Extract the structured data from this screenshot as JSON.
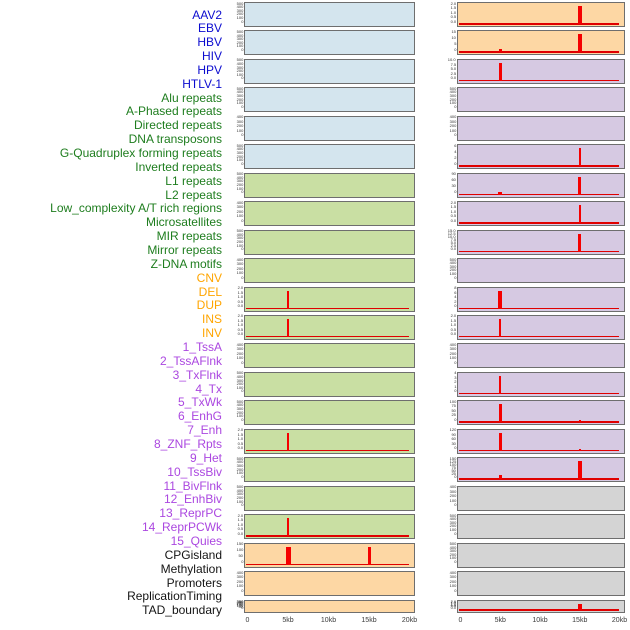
{
  "figure": {
    "description": "Multi-track genomic signal figure: 44 annotation rows, two loci columns, red signal spikes on colored panel backgrounds"
  },
  "colors": {
    "panel_blue": "#d4e5ee",
    "panel_green": "#c9dfa3",
    "panel_orange": "#fdd7a4",
    "panel_purple": "#d6c9e2",
    "panel_gray": "#d4d4d4",
    "spike_red": "#f50000",
    "baseline_red": "#e00000",
    "panel_border": "#6e6e6e",
    "label_blue": "#0b0bcf",
    "label_green": "#1e7d1e",
    "label_orange": "#ffa500",
    "label_purple": "#ab47e0",
    "label_black": "#141414",
    "tick_text": "#2f2f2f",
    "axis_text": "#3a3a3a"
  },
  "chart_data": {
    "type": "bar",
    "title": "",
    "x_axis": {
      "ticks": [
        "0",
        "5kb",
        "10kb",
        "15kb",
        "20kb"
      ],
      "range_kb": [
        0,
        20
      ]
    },
    "legend": "none",
    "grid": false,
    "row_labels": [
      {
        "text": "AAV2",
        "group": "virus"
      },
      {
        "text": "EBV",
        "group": "virus"
      },
      {
        "text": "HBV",
        "group": "virus"
      },
      {
        "text": "HIV",
        "group": "virus"
      },
      {
        "text": "HPV",
        "group": "virus"
      },
      {
        "text": "HTLV-1",
        "group": "virus"
      },
      {
        "text": "Alu repeats",
        "group": "repeat"
      },
      {
        "text": "A-Phased repeats",
        "group": "repeat"
      },
      {
        "text": "Directed repeats",
        "group": "repeat"
      },
      {
        "text": "DNA transposons",
        "group": "repeat"
      },
      {
        "text": "G-Quadruplex forming repeats",
        "group": "repeat"
      },
      {
        "text": "Inverted repeats",
        "group": "repeat"
      },
      {
        "text": "L1 repeats",
        "group": "repeat"
      },
      {
        "text": "L2 repeats",
        "group": "repeat"
      },
      {
        "text": "Low_complexity A/T rich regions",
        "group": "repeat"
      },
      {
        "text": "Microsatellites",
        "group": "repeat"
      },
      {
        "text": "MIR repeats",
        "group": "repeat"
      },
      {
        "text": "Mirror repeats",
        "group": "repeat"
      },
      {
        "text": "Z-DNA motifs",
        "group": "repeat"
      },
      {
        "text": "CNV",
        "group": "sv"
      },
      {
        "text": "DEL",
        "group": "sv"
      },
      {
        "text": "DUP",
        "group": "sv"
      },
      {
        "text": "INS",
        "group": "sv"
      },
      {
        "text": "INV",
        "group": "sv"
      },
      {
        "text": "1_TssA",
        "group": "chromstate"
      },
      {
        "text": "2_TssAFlnk",
        "group": "chromstate"
      },
      {
        "text": "3_TxFlnk",
        "group": "chromstate"
      },
      {
        "text": "4_Tx",
        "group": "chromstate"
      },
      {
        "text": "5_TxWk",
        "group": "chromstate"
      },
      {
        "text": "6_EnhG",
        "group": "chromstate"
      },
      {
        "text": "7_Enh",
        "group": "chromstate"
      },
      {
        "text": "8_ZNF_Rpts",
        "group": "chromstate"
      },
      {
        "text": "9_Het",
        "group": "chromstate"
      },
      {
        "text": "10_TssBiv",
        "group": "chromstate"
      },
      {
        "text": "11_BivFlnk",
        "group": "chromstate"
      },
      {
        "text": "12_EnhBiv",
        "group": "chromstate"
      },
      {
        "text": "13_ReprPC",
        "group": "chromstate"
      },
      {
        "text": "14_ReprPCWk",
        "group": "chromstate"
      },
      {
        "text": "15_Quies",
        "group": "chromstate"
      },
      {
        "text": "CPGisland",
        "group": "other"
      },
      {
        "text": "Methylation",
        "group": "other"
      },
      {
        "text": "Promoters",
        "group": "other"
      },
      {
        "text": "ReplicationTiming",
        "group": "other"
      },
      {
        "text": "TAD_boundary",
        "group": "other"
      }
    ],
    "left_panels": [
      {
        "bg": "panel_blue",
        "yticks": [
          "500",
          "400",
          "300",
          "200",
          "100",
          "0"
        ],
        "baseline": false,
        "spikes": []
      },
      {
        "bg": "panel_blue",
        "yticks": [
          "500",
          "400",
          "300",
          "200",
          "100",
          "0"
        ],
        "baseline": false,
        "spikes": []
      },
      {
        "bg": "panel_blue",
        "yticks": [
          "500",
          "400",
          "300",
          "200",
          "100",
          "0"
        ],
        "baseline": false,
        "spikes": []
      },
      {
        "bg": "panel_blue",
        "yticks": [
          "500",
          "400",
          "300",
          "200",
          "100",
          "0"
        ],
        "baseline": false,
        "spikes": []
      },
      {
        "bg": "panel_blue",
        "yticks": [
          "400",
          "300",
          "200",
          "100",
          "0"
        ],
        "baseline": false,
        "spikes": []
      },
      {
        "bg": "panel_blue",
        "yticks": [
          "500",
          "400",
          "300",
          "200",
          "100",
          "0"
        ],
        "baseline": false,
        "spikes": []
      },
      {
        "bg": "panel_green",
        "yticks": [
          "500",
          "400",
          "300",
          "200",
          "100",
          "0"
        ],
        "baseline": false,
        "spikes": []
      },
      {
        "bg": "panel_green",
        "yticks": [
          "400",
          "300",
          "200",
          "100",
          "0"
        ],
        "baseline": false,
        "spikes": []
      },
      {
        "bg": "panel_green",
        "yticks": [
          "500",
          "400",
          "300",
          "200",
          "100",
          "0"
        ],
        "baseline": false,
        "spikes": []
      },
      {
        "bg": "panel_green",
        "yticks": [
          "400",
          "300",
          "200",
          "100",
          "0"
        ],
        "baseline": false,
        "spikes": []
      },
      {
        "bg": "panel_green",
        "yticks": [
          "2.0",
          "1.5",
          "1.0",
          "0.5",
          "0.0"
        ],
        "baseline": true,
        "spikes": [
          {
            "x_kb": 5,
            "h": 1.0,
            "w": 2
          }
        ]
      },
      {
        "bg": "panel_green",
        "yticks": [
          "2.0",
          "1.5",
          "1.0",
          "0.5",
          "0.0"
        ],
        "baseline": true,
        "spikes": [
          {
            "x_kb": 5,
            "h": 1.0,
            "w": 2
          }
        ]
      },
      {
        "bg": "panel_green",
        "yticks": [
          "400",
          "300",
          "200",
          "100",
          "0"
        ],
        "baseline": false,
        "spikes": []
      },
      {
        "bg": "panel_green",
        "yticks": [
          "500",
          "400",
          "300",
          "200",
          "100",
          "0"
        ],
        "baseline": false,
        "spikes": []
      },
      {
        "bg": "panel_green",
        "yticks": [
          "500",
          "400",
          "300",
          "200",
          "100",
          "0"
        ],
        "baseline": false,
        "spikes": []
      },
      {
        "bg": "panel_green",
        "yticks": [
          "2.0",
          "1.5",
          "1.0",
          "0.5",
          "0.0"
        ],
        "baseline": true,
        "spikes": [
          {
            "x_kb": 5,
            "h": 1.0,
            "w": 2
          }
        ]
      },
      {
        "bg": "panel_green",
        "yticks": [
          "500",
          "400",
          "300",
          "200",
          "100",
          "0"
        ],
        "baseline": false,
        "spikes": []
      },
      {
        "bg": "panel_green",
        "yticks": [
          "500",
          "400",
          "300",
          "200",
          "100",
          "0"
        ],
        "baseline": false,
        "spikes": []
      },
      {
        "bg": "panel_green",
        "yticks": [
          "2.0",
          "1.5",
          "1.0",
          "0.5",
          "0.0"
        ],
        "baseline": true,
        "spikes": [
          {
            "x_kb": 5,
            "h": 1.0,
            "w": 2
          }
        ]
      },
      {
        "bg": "panel_orange",
        "yticks": [
          "150",
          "100",
          "50",
          "0"
        ],
        "baseline": true,
        "spikes": [
          {
            "x_kb": 5,
            "h": 1.0,
            "w": 5
          },
          {
            "x_kb": 15,
            "h": 0.97,
            "w": 3
          }
        ]
      },
      {
        "bg": "panel_orange",
        "yticks": [
          "400",
          "300",
          "200",
          "100",
          "0"
        ],
        "baseline": false,
        "spikes": []
      },
      {
        "bg": "panel_orange",
        "yticks": [
          "350",
          "300",
          "250",
          "200",
          "150",
          "100",
          "50",
          "0"
        ],
        "baseline": false,
        "spikes": []
      }
    ],
    "right_panels": [
      {
        "bg": "panel_orange",
        "yticks": [
          "2.0",
          "1.5",
          "1.0",
          "0.5",
          "0.0"
        ],
        "baseline": true,
        "spikes": [
          {
            "x_kb": 15,
            "h": 1.0,
            "w": 4
          }
        ]
      },
      {
        "bg": "panel_orange",
        "yticks": [
          "15",
          "10",
          "5",
          "0"
        ],
        "baseline": true,
        "spikes": [
          {
            "x_kb": 15,
            "h": 1.0,
            "w": 4
          },
          {
            "x_kb": 5,
            "h": 0.2,
            "w": 3
          }
        ]
      },
      {
        "bg": "panel_purple",
        "yticks": [
          "10.0",
          "7.5",
          "5.0",
          "2.5",
          "0.0"
        ],
        "baseline": true,
        "spikes": [
          {
            "x_kb": 5,
            "h": 1.0,
            "w": 3
          }
        ]
      },
      {
        "bg": "panel_purple",
        "yticks": [
          "500",
          "400",
          "300",
          "200",
          "100",
          "0"
        ],
        "baseline": false,
        "spikes": []
      },
      {
        "bg": "panel_purple",
        "yticks": [
          "400",
          "300",
          "200",
          "100",
          "0"
        ],
        "baseline": false,
        "spikes": []
      },
      {
        "bg": "panel_purple",
        "yticks": [
          "6",
          "4",
          "2",
          "0"
        ],
        "baseline": true,
        "spikes": [
          {
            "x_kb": 15,
            "h": 1.0,
            "w": 2
          }
        ]
      },
      {
        "bg": "panel_purple",
        "yticks": [
          "90",
          "60",
          "30",
          "0"
        ],
        "baseline": true,
        "spikes": [
          {
            "x_kb": 15,
            "h": 1.0,
            "w": 3
          },
          {
            "x_kb": 5,
            "h": 0.15,
            "w": 4
          }
        ]
      },
      {
        "bg": "panel_purple",
        "yticks": [
          "2.0",
          "1.5",
          "1.0",
          "0.5",
          "0.0"
        ],
        "baseline": true,
        "spikes": [
          {
            "x_kb": 15,
            "h": 1.0,
            "w": 2
          }
        ]
      },
      {
        "bg": "panel_purple",
        "yticks": [
          "15.0",
          "12.5",
          "10.0",
          "7.5",
          "5.0",
          "2.5",
          "0.0"
        ],
        "baseline": true,
        "spikes": [
          {
            "x_kb": 15,
            "h": 1.0,
            "w": 3
          }
        ]
      },
      {
        "bg": "panel_purple",
        "yticks": [
          "500",
          "400",
          "300",
          "200",
          "100",
          "0"
        ],
        "baseline": false,
        "spikes": []
      },
      {
        "bg": "panel_purple",
        "yticks": [
          "8",
          "6",
          "4",
          "2",
          "0"
        ],
        "baseline": true,
        "spikes": [
          {
            "x_kb": 5,
            "h": 1.0,
            "w": 4
          }
        ]
      },
      {
        "bg": "panel_purple",
        "yticks": [
          "2.0",
          "1.5",
          "1.0",
          "0.5",
          "0.0"
        ],
        "baseline": true,
        "spikes": [
          {
            "x_kb": 5,
            "h": 1.0,
            "w": 2
          }
        ]
      },
      {
        "bg": "panel_purple",
        "yticks": [
          "400",
          "300",
          "200",
          "100",
          "0"
        ],
        "baseline": false,
        "spikes": []
      },
      {
        "bg": "panel_purple",
        "yticks": [
          "4",
          "3",
          "2",
          "1",
          "0"
        ],
        "baseline": true,
        "spikes": [
          {
            "x_kb": 5,
            "h": 1.0,
            "w": 2
          }
        ]
      },
      {
        "bg": "panel_purple",
        "yticks": [
          "100",
          "75",
          "50",
          "25",
          "0"
        ],
        "baseline": true,
        "spikes": [
          {
            "x_kb": 5,
            "h": 1.0,
            "w": 3
          },
          {
            "x_kb": 15,
            "h": 0.12,
            "w": 2
          }
        ]
      },
      {
        "bg": "panel_purple",
        "yticks": [
          "120",
          "90",
          "60",
          "30",
          "0"
        ],
        "baseline": true,
        "spikes": [
          {
            "x_kb": 5,
            "h": 1.0,
            "w": 3
          },
          {
            "x_kb": 15,
            "h": 0.1,
            "w": 2
          }
        ]
      },
      {
        "bg": "panel_purple",
        "yticks": [
          "150",
          "125",
          "100",
          "75",
          "50",
          "25",
          "0"
        ],
        "baseline": true,
        "spikes": [
          {
            "x_kb": 15,
            "h": 1.0,
            "w": 4
          },
          {
            "x_kb": 5,
            "h": 0.25,
            "w": 3
          }
        ]
      },
      {
        "bg": "panel_gray",
        "yticks": [
          "400",
          "300",
          "200",
          "100",
          "0"
        ],
        "baseline": false,
        "spikes": []
      },
      {
        "bg": "panel_gray",
        "yticks": [
          "500",
          "400",
          "300",
          "200",
          "100",
          "0"
        ],
        "baseline": false,
        "spikes": []
      },
      {
        "bg": "panel_gray",
        "yticks": [
          "500",
          "400",
          "300",
          "200",
          "100",
          "0"
        ],
        "baseline": false,
        "spikes": []
      },
      {
        "bg": "panel_gray",
        "yticks": [
          "400",
          "300",
          "200",
          "100",
          "0"
        ],
        "baseline": false,
        "spikes": []
      },
      {
        "bg": "panel_gray",
        "yticks": [
          "2.0",
          "1.5",
          "1.0",
          "0.5",
          "0.0"
        ],
        "baseline": true,
        "spikes": [
          {
            "x_kb": 15,
            "h": 1.0,
            "w": 4
          }
        ]
      }
    ]
  }
}
